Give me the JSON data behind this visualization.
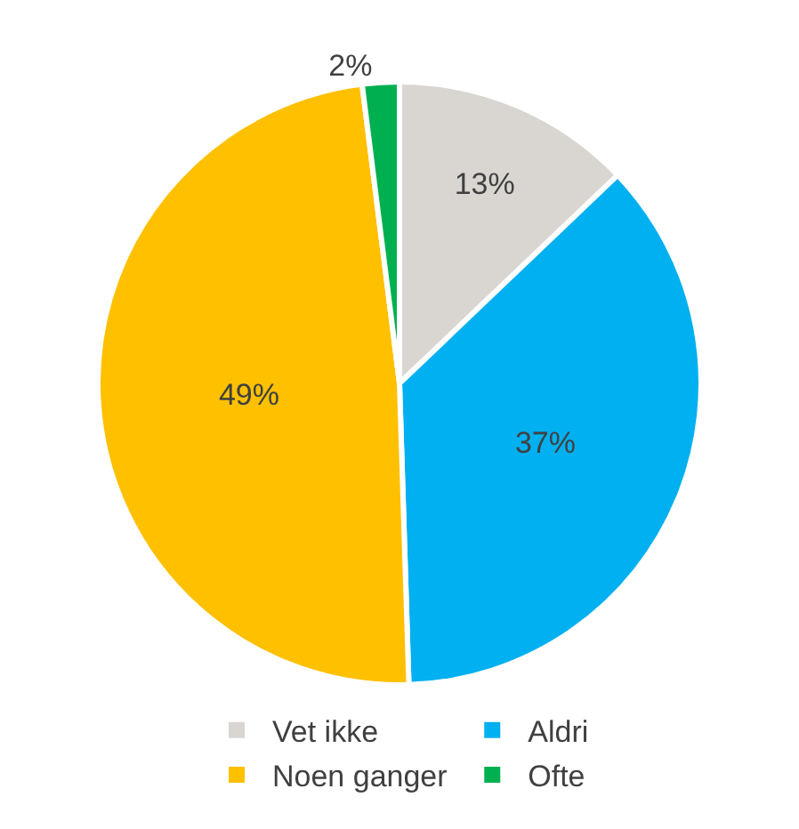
{
  "chart_data": {
    "type": "pie",
    "categories": [
      "Vet ikke",
      "Aldri",
      "Noen ganger",
      "Ofte"
    ],
    "values": [
      13,
      37,
      49,
      2
    ],
    "colors": [
      "#d9d6d2",
      "#00b0f0",
      "#ffc000",
      "#00b050"
    ],
    "value_labels": [
      "13%",
      "37%",
      "49%",
      "2%"
    ],
    "legend": "bottom"
  }
}
